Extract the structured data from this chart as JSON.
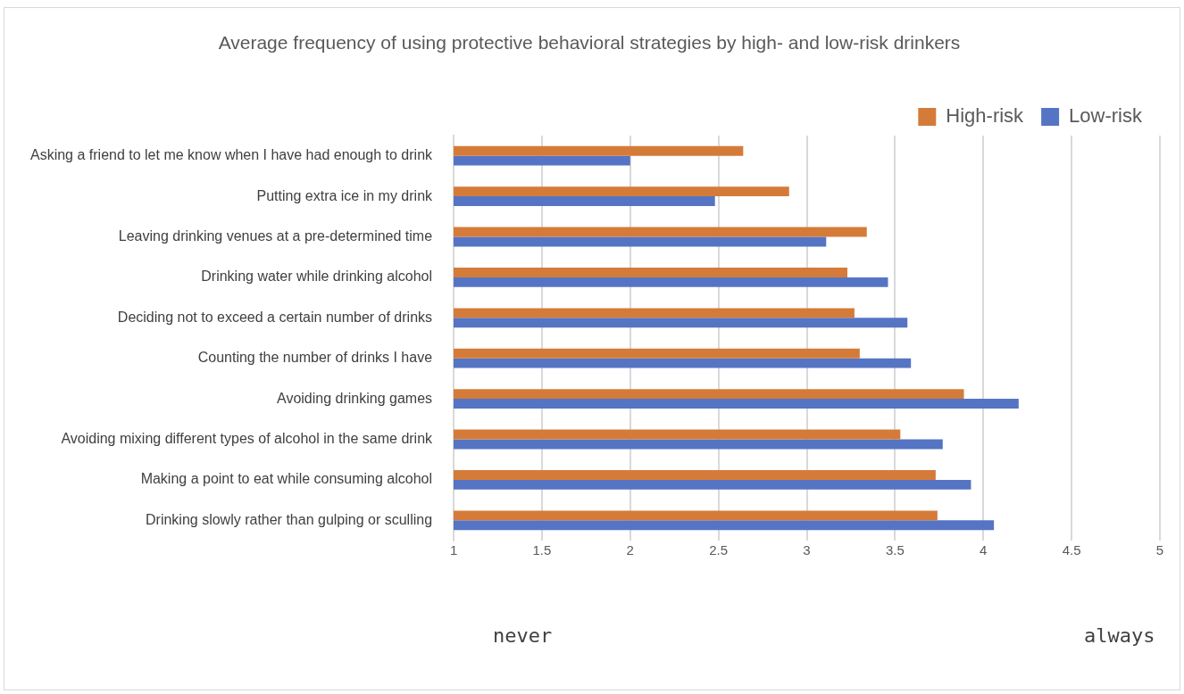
{
  "chart_data": {
    "type": "bar",
    "orientation": "horizontal",
    "title": "Average frequency of using protective behavioral strategies by high- and low-risk drinkers",
    "categories": [
      "Asking a friend to let me know when I have had enough to drink",
      "Putting extra ice in my drink",
      "Leaving drinking venues at a pre-determined time",
      "Drinking water while drinking alcohol",
      "Deciding not to exceed a certain number of drinks",
      "Counting the number of drinks I have",
      "Avoiding drinking games",
      "Avoiding mixing different types of alcohol in the same drink",
      "Making a point to eat while consuming alcohol",
      "Drinking slowly rather than gulping or sculling"
    ],
    "series": [
      {
        "name": "High-risk",
        "color": "#d57b3a",
        "values": [
          2.64,
          2.9,
          3.34,
          3.23,
          3.27,
          3.3,
          3.89,
          3.53,
          3.73,
          3.74
        ]
      },
      {
        "name": "Low-risk",
        "color": "#5574c4",
        "values": [
          2.0,
          2.48,
          3.11,
          3.46,
          3.57,
          3.59,
          4.2,
          3.77,
          3.93,
          4.06
        ]
      }
    ],
    "xlim": [
      1,
      5
    ],
    "xticks": [
      1,
      1.5,
      2,
      2.5,
      3,
      3.5,
      4,
      4.5,
      5
    ],
    "grid": "x",
    "legend": "top right",
    "annotations": [
      "never",
      "always"
    ]
  }
}
